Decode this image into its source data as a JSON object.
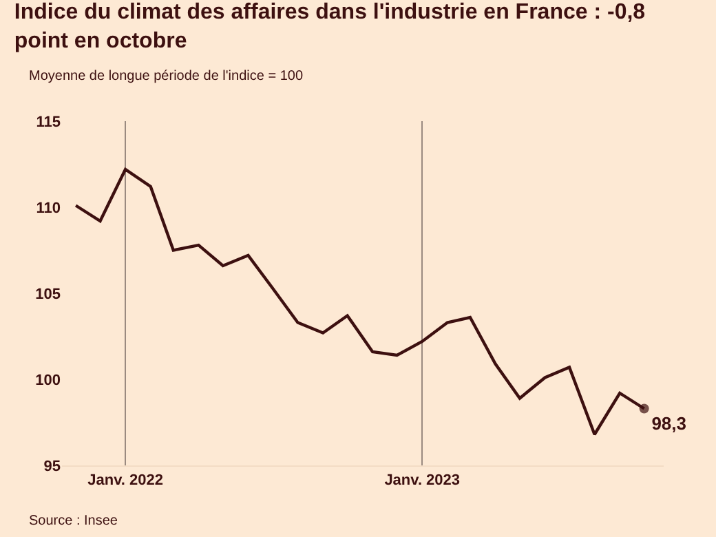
{
  "chart_data": {
    "type": "line",
    "title": "Indice du climat des affaires dans l'industrie en France : -0,8 point en octobre",
    "subtitle": "Moyenne de longue période de l'indice = 100",
    "x": [
      "2021-11",
      "2021-12",
      "2022-01",
      "2022-02",
      "2022-03",
      "2022-04",
      "2022-05",
      "2022-06",
      "2022-07",
      "2022-08",
      "2022-09",
      "2022-10",
      "2022-11",
      "2022-12",
      "2023-01",
      "2023-02",
      "2023-03",
      "2023-04",
      "2023-05",
      "2023-06",
      "2023-07",
      "2023-08",
      "2023-09",
      "2023-10"
    ],
    "series": [
      {
        "color": "#3d1010",
        "values": [
          110.1,
          109.2,
          112.2,
          111.2,
          107.5,
          107.8,
          106.6,
          107.2,
          105.3,
          103.3,
          102.7,
          103.7,
          101.6,
          101.4,
          102.2,
          103.3,
          103.6,
          100.9,
          98.9,
          100.1,
          100.7,
          96.8,
          99.2,
          98.3
        ],
        "value_labels": [
          null,
          null,
          null,
          null,
          null,
          null,
          null,
          null,
          null,
          null,
          null,
          null,
          null,
          null,
          null,
          null,
          null,
          null,
          null,
          null,
          null,
          null,
          null,
          "98,3"
        ]
      }
    ],
    "xlim": [
      "2021-10-15",
      "2023-10-25"
    ],
    "xticks": [
      {
        "value": "2022-01",
        "label": "Janv. 2022"
      },
      {
        "value": "2023-01",
        "label": "Janv. 2023"
      }
    ],
    "ylim": [
      95,
      115
    ],
    "yticks": [
      95,
      100,
      105,
      110,
      115
    ],
    "grid": "x",
    "annotations": [
      "Source : Insee"
    ]
  }
}
